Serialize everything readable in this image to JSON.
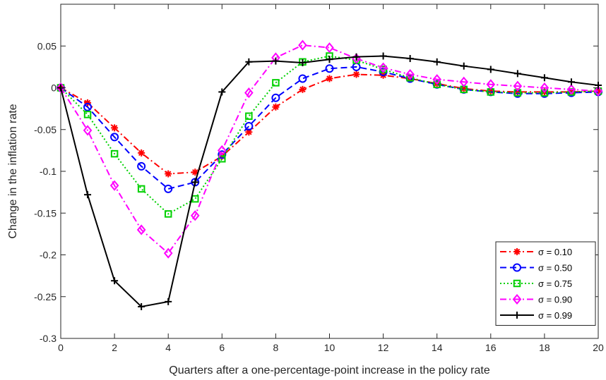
{
  "chart_data": {
    "type": "line",
    "title": "",
    "xlabel": "Quarters after a one-percentage-point increase in the policy rate",
    "ylabel": "Change in the inflation rate",
    "xlim": [
      0,
      20
    ],
    "ylim": [
      -0.3,
      0.1
    ],
    "xticks": [
      0,
      2,
      4,
      6,
      8,
      10,
      12,
      14,
      16,
      18,
      20
    ],
    "yticks": [
      -0.3,
      -0.25,
      -0.2,
      -0.15,
      -0.1,
      -0.05,
      0,
      0.05
    ],
    "ytick_labels": [
      "-0.3",
      "-0.25",
      "-0.2",
      "-0.15",
      "-0.1",
      "-0.05",
      "0",
      "0.05"
    ],
    "grid": false,
    "legend_position": "bottom-right",
    "x": [
      0,
      1,
      2,
      3,
      4,
      5,
      6,
      7,
      8,
      9,
      10,
      11,
      12,
      13,
      14,
      15,
      16,
      17,
      18,
      19,
      20
    ],
    "series": [
      {
        "name": "σ = 0.10",
        "color": "#ff0000",
        "dash": "dashdot",
        "marker": "asterisk",
        "values": [
          0,
          -0.018,
          -0.048,
          -0.078,
          -0.103,
          -0.101,
          -0.082,
          -0.053,
          -0.023,
          -0.002,
          0.011,
          0.016,
          0.015,
          0.011,
          0.005,
          -0.001,
          -0.004,
          -0.005,
          -0.005,
          -0.005,
          -0.004
        ]
      },
      {
        "name": "σ = 0.50",
        "color": "#0000ff",
        "dash": "dashed",
        "marker": "circle",
        "values": [
          0,
          -0.023,
          -0.059,
          -0.094,
          -0.121,
          -0.113,
          -0.08,
          -0.046,
          -0.012,
          0.011,
          0.023,
          0.025,
          0.019,
          0.011,
          0.004,
          -0.002,
          -0.005,
          -0.007,
          -0.007,
          -0.006,
          -0.005
        ]
      },
      {
        "name": "σ = 0.75",
        "color": "#00d000",
        "dash": "dotted",
        "marker": "square",
        "values": [
          0,
          -0.032,
          -0.079,
          -0.121,
          -0.151,
          -0.133,
          -0.085,
          -0.034,
          0.006,
          0.031,
          0.038,
          0.033,
          0.022,
          0.012,
          0.004,
          -0.002,
          -0.005,
          -0.006,
          -0.006,
          -0.005,
          -0.004
        ]
      },
      {
        "name": "σ = 0.90",
        "color": "#ff00ff",
        "dash": "dashdot",
        "marker": "diamond",
        "values": [
          0,
          -0.051,
          -0.117,
          -0.17,
          -0.198,
          -0.153,
          -0.075,
          -0.006,
          0.036,
          0.051,
          0.048,
          0.035,
          0.024,
          0.016,
          0.01,
          0.007,
          0.004,
          0.002,
          0.0,
          -0.002,
          -0.004
        ]
      },
      {
        "name": "σ = 0.99",
        "color": "#000000",
        "dash": "solid",
        "marker": "plus",
        "values": [
          0,
          -0.128,
          -0.231,
          -0.262,
          -0.256,
          -0.113,
          -0.005,
          0.031,
          0.032,
          0.03,
          0.034,
          0.037,
          0.038,
          0.035,
          0.031,
          0.026,
          0.022,
          0.017,
          0.012,
          0.007,
          0.003
        ]
      }
    ]
  }
}
